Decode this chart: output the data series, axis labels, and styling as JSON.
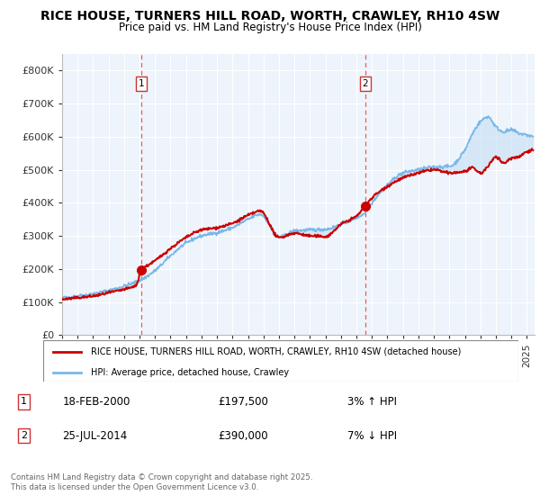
{
  "title": "RICE HOUSE, TURNERS HILL ROAD, WORTH, CRAWLEY, RH10 4SW",
  "subtitle": "Price paid vs. HM Land Registry's House Price Index (HPI)",
  "ylim": [
    0,
    850000
  ],
  "yticks": [
    0,
    100000,
    200000,
    300000,
    400000,
    500000,
    600000,
    700000,
    800000
  ],
  "ytick_labels": [
    "£0",
    "£100K",
    "£200K",
    "£300K",
    "£400K",
    "£500K",
    "£600K",
    "£700K",
    "£800K"
  ],
  "xlim_start": 1995.0,
  "xlim_end": 2025.5,
  "sale1_date": 2000.12,
  "sale1_price": 197500,
  "sale1_label": "1",
  "sale2_date": 2014.56,
  "sale2_price": 390000,
  "sale2_label": "2",
  "legend_line1": "RICE HOUSE, TURNERS HILL ROAD, WORTH, CRAWLEY, RH10 4SW (detached house)",
  "legend_line2": "HPI: Average price, detached house, Crawley",
  "footer": "Contains HM Land Registry data © Crown copyright and database right 2025.\nThis data is licensed under the Open Government Licence v3.0.",
  "hpi_color": "#7ab8e8",
  "hpi_fill": "#c5dff5",
  "price_color": "#cc0000",
  "dashed_color": "#e06060",
  "background_color": "#ffffff",
  "plot_bg_color": "#eef4fb",
  "grid_color": "#ffffff"
}
